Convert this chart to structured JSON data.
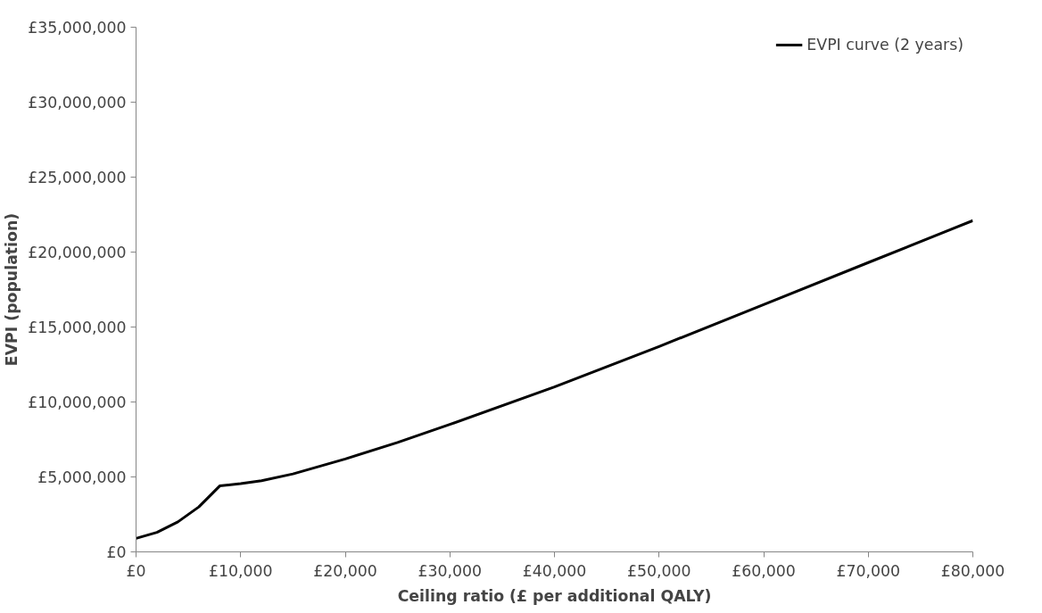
{
  "chart_data": {
    "type": "line",
    "xlabel": "Ceiling ratio (£ per additional QALY)",
    "ylabel": "EVPI (population)",
    "x": [
      0,
      2000,
      4000,
      6000,
      8000,
      10000,
      12000,
      15000,
      20000,
      25000,
      30000,
      40000,
      50000,
      60000,
      70000,
      80000
    ],
    "series": [
      {
        "name": "EVPI curve (2 years)",
        "color": "#000000",
        "values": [
          900000,
          1300000,
          2000000,
          3000000,
          4400000,
          4550000,
          4750000,
          5200000,
          6200000,
          7300000,
          8500000,
          11000000,
          13700000,
          16500000,
          19300000,
          22100000
        ]
      }
    ],
    "xlim": [
      0,
      80000
    ],
    "xticks": [
      {
        "value": 0,
        "label": "£0"
      },
      {
        "value": 10000,
        "label": "£10,000"
      },
      {
        "value": 20000,
        "label": "£20,000"
      },
      {
        "value": 30000,
        "label": "£30,000"
      },
      {
        "value": 40000,
        "label": "£40,000"
      },
      {
        "value": 50000,
        "label": "£50,000"
      },
      {
        "value": 60000,
        "label": "£60,000"
      },
      {
        "value": 70000,
        "label": "£70,000"
      },
      {
        "value": 80000,
        "label": "£80,000"
      }
    ],
    "ylim": [
      0,
      35000000
    ],
    "yticks": [
      {
        "value": 0,
        "label": "£0"
      },
      {
        "value": 5000000,
        "label": "£5,000,000"
      },
      {
        "value": 10000000,
        "label": "£10,000,000"
      },
      {
        "value": 15000000,
        "label": "£15,000,000"
      },
      {
        "value": 20000000,
        "label": "£20,000,000"
      },
      {
        "value": 25000000,
        "label": "£25,000,000"
      },
      {
        "value": 30000000,
        "label": "£30,000,000"
      },
      {
        "value": 35000000,
        "label": "£35,000,000"
      }
    ],
    "grid": false,
    "legend": "top right",
    "marker": "none",
    "line_style": "solid"
  }
}
